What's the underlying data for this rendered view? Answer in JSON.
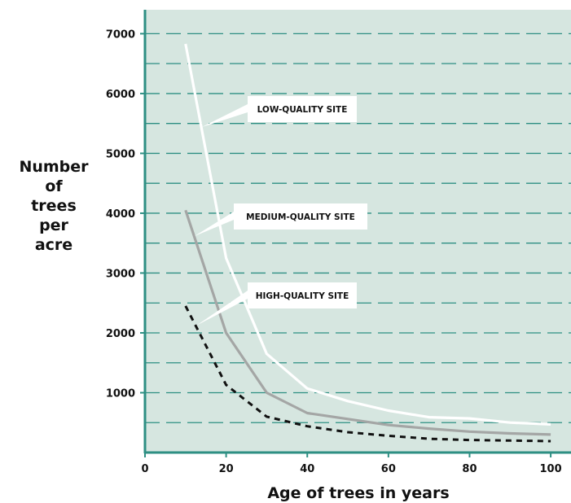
{
  "colors": {
    "plot_background": "#d6e6e0",
    "axis": "#2e8f83",
    "grid": "#2e8f83",
    "low": "#ffffff",
    "medium": "#a4a6a5",
    "high": "#111111",
    "callout_box": "#ffffff"
  },
  "chart_data": {
    "type": "line",
    "title": "",
    "xlabel": "Age of trees in years",
    "ylabel": [
      "Number",
      "of",
      "trees",
      "per",
      "acre"
    ],
    "xlim": [
      0,
      105
    ],
    "ylim": [
      0,
      7400
    ],
    "xticks": [
      0,
      20,
      40,
      60,
      80,
      100
    ],
    "yticks": [
      1000,
      2000,
      3000,
      4000,
      5000,
      6000,
      7000
    ],
    "grid": "dashed horizontal every 500",
    "legend": "callout labels pointing at each curve",
    "series": [
      {
        "name": "LOW-QUALITY SITE",
        "style": "solid-white",
        "x": [
          10,
          20,
          30,
          40,
          50,
          60,
          70,
          80,
          90,
          100
        ],
        "y": [
          6830,
          3250,
          1650,
          1070,
          860,
          700,
          590,
          570,
          500,
          470
        ]
      },
      {
        "name": "MEDIUM-QUALITY SITE",
        "style": "solid-gray",
        "x": [
          10,
          20,
          30,
          40,
          50,
          60,
          70,
          80,
          90,
          100
        ],
        "y": [
          4050,
          2000,
          1000,
          660,
          560,
          460,
          400,
          350,
          320,
          300
        ]
      },
      {
        "name": "HIGH-QUALITY SITE",
        "style": "dashed-black",
        "x": [
          10,
          20,
          30,
          40,
          50,
          60,
          70,
          80,
          90,
          100
        ],
        "y": [
          2450,
          1130,
          600,
          440,
          340,
          280,
          230,
          210,
          200,
          190
        ]
      }
    ]
  }
}
